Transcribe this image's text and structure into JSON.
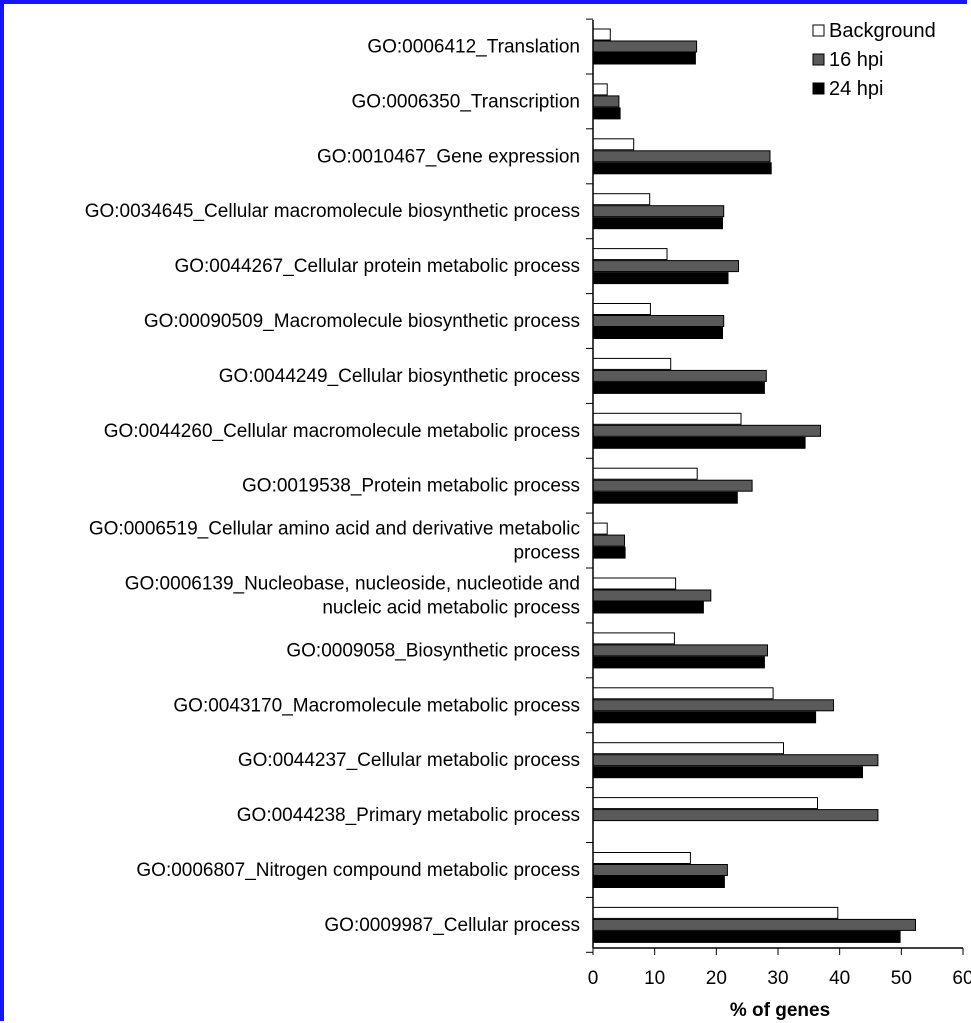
{
  "chart_data": {
    "type": "bar",
    "orientation": "horizontal",
    "categories": [
      [
        "GO:0006412_Translation"
      ],
      [
        "GO:0006350_Transcription"
      ],
      [
        "GO:0010467_Gene expression"
      ],
      [
        "GO:0034645_Cellular macromolecule biosynthetic process"
      ],
      [
        "GO:0044267_Cellular protein metabolic process"
      ],
      [
        "GO:00090509_Macromolecule biosynthetic process"
      ],
      [
        "GO:0044249_Cellular biosynthetic process"
      ],
      [
        "GO:0044260_Cellular macromolecule metabolic process"
      ],
      [
        "GO:0019538_Protein metabolic process"
      ],
      [
        "GO:0006519_Cellular amino acid and derivative metabolic",
        "process"
      ],
      [
        "GO:0006139_Nucleobase, nucleoside, nucleotide and",
        "nucleic acid metabolic process"
      ],
      [
        "GO:0009058_Biosynthetic process"
      ],
      [
        "GO:0043170_Macromolecule metabolic process"
      ],
      [
        "GO:0044237_Cellular metabolic process"
      ],
      [
        "GO:0044238_Primary metabolic process"
      ],
      [
        "GO:0006807_Nitrogen compound metabolic process"
      ],
      [
        "GO:0009987_Cellular process"
      ]
    ],
    "series": [
      {
        "name": "Background",
        "color": "#ffffff",
        "values": [
          2.8,
          2.3,
          6.6,
          9.2,
          12.0,
          9.3,
          12.6,
          24.0,
          16.9,
          2.3,
          13.4,
          13.2,
          29.2,
          30.9,
          36.4,
          15.8,
          39.7
        ]
      },
      {
        "name": "16 hpi",
        "color": "#5a5a5a",
        "values": [
          16.8,
          4.2,
          28.7,
          21.2,
          23.6,
          21.2,
          28.1,
          36.9,
          25.8,
          5.1,
          19.1,
          28.3,
          39.0,
          46.2,
          46.2,
          21.8,
          52.3
        ]
      },
      {
        "name": "24 hpi",
        "color": "#000000",
        "values": [
          16.6,
          4.4,
          28.9,
          21.0,
          21.9,
          21.0,
          27.8,
          34.4,
          23.4,
          5.2,
          17.9,
          27.8,
          36.1,
          43.7,
          null,
          21.3,
          49.8
        ]
      }
    ],
    "xlabel": "% of genes",
    "xlim": [
      0,
      60
    ],
    "xticks": [
      "0",
      "10",
      "20",
      "30",
      "40",
      "50",
      "60"
    ],
    "legend_position": "top-right",
    "grid": false
  }
}
